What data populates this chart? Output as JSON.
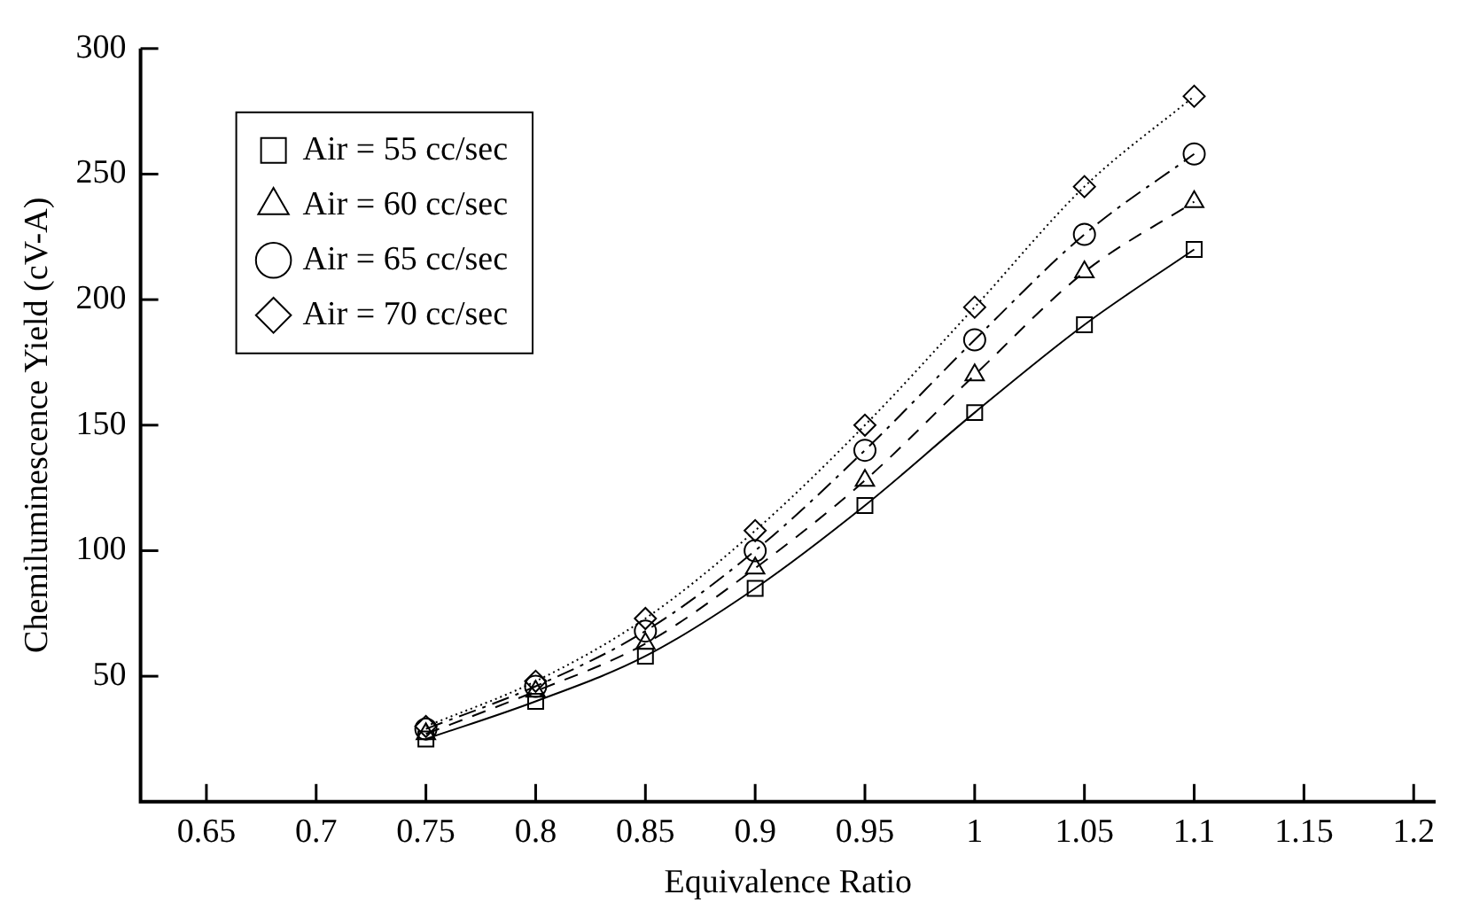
{
  "chart_data": {
    "type": "line",
    "xlabel": "Equivalence Ratio",
    "ylabel": "Chemiluminescence Yield (cV-A)",
    "x": [
      0.75,
      0.8,
      0.85,
      0.9,
      0.95,
      1.0,
      1.05,
      1.1
    ],
    "series": [
      {
        "name": "Air = 55 cc/sec",
        "color": "#000000",
        "marker": "square",
        "line_style": "solid",
        "values": [
          25,
          40,
          58,
          85,
          118,
          155,
          190,
          220
        ]
      },
      {
        "name": "Air = 60 cc/sec",
        "color": "#000000",
        "marker": "triangle",
        "line_style": "dashed",
        "values": [
          27,
          44,
          63,
          93,
          128,
          170,
          211,
          239
        ]
      },
      {
        "name": "Air = 65 cc/sec",
        "color": "#000000",
        "marker": "circle",
        "line_style": "dashdot",
        "values": [
          29,
          46,
          68,
          100,
          140,
          184,
          226,
          258
        ]
      },
      {
        "name": "Air = 70 cc/sec",
        "color": "#000000",
        "marker": "diamond",
        "line_style": "dotted",
        "values": [
          30,
          48,
          73,
          108,
          150,
          197,
          245,
          281
        ]
      }
    ],
    "xlim": [
      0.62,
      1.21
    ],
    "xticks": [
      0.65,
      0.7,
      0.75,
      0.8,
      0.85,
      0.9,
      0.95,
      1,
      1.05,
      1.1,
      1.15,
      1.2
    ],
    "ylim": [
      0,
      300
    ],
    "yticks": [
      50,
      100,
      150,
      200,
      250,
      300
    ],
    "grid": false,
    "legend": "top left"
  }
}
